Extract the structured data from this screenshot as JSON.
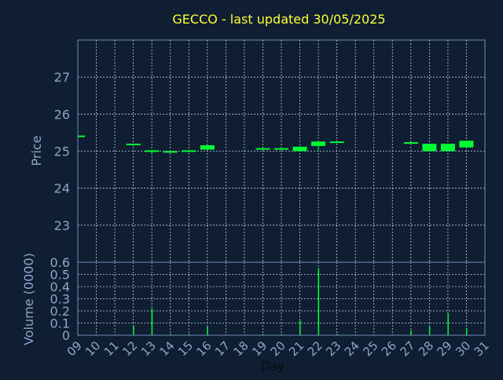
{
  "title": "GECCO - last updated 30/05/2025",
  "colors": {
    "background": "#0f1e33",
    "frame": "#6f8fb5",
    "grid": "#c4d1e2",
    "title": "#ffff33",
    "axis_label": "#8ba6c8",
    "candle": "#00ff33"
  },
  "chart_data": [
    {
      "type": "candlestick",
      "ylabel": "Price",
      "ylim": [
        22.0,
        28.0
      ],
      "yticks": [
        23,
        24,
        25,
        26,
        27
      ],
      "grid": true,
      "candles": [
        {
          "day": 9,
          "open": 25.4,
          "close": 25.4,
          "high": 25.42,
          "low": 25.38
        },
        {
          "day": 12,
          "open": 25.18,
          "close": 25.18,
          "high": 25.2,
          "low": 25.14
        },
        {
          "day": 13,
          "open": 25.0,
          "close": 25.0,
          "high": 25.02,
          "low": 24.92
        },
        {
          "day": 14,
          "open": 24.98,
          "close": 24.98,
          "high": 25.0,
          "low": 24.96
        },
        {
          "day": 15,
          "open": 25.0,
          "close": 25.0,
          "high": 25.02,
          "low": 24.98
        },
        {
          "day": 16,
          "open": 25.04,
          "close": 25.16,
          "high": 25.16,
          "low": 25.04
        },
        {
          "day": 19,
          "open": 25.06,
          "close": 25.06,
          "high": 25.08,
          "low": 25.04
        },
        {
          "day": 20,
          "open": 25.06,
          "close": 25.06,
          "high": 25.08,
          "low": 25.04
        },
        {
          "day": 21,
          "open": 25.0,
          "close": 25.12,
          "high": 25.12,
          "low": 25.0
        },
        {
          "day": 22,
          "open": 25.14,
          "close": 25.26,
          "high": 25.26,
          "low": 25.0
        },
        {
          "day": 23,
          "open": 25.24,
          "close": 25.24,
          "high": 25.26,
          "low": 25.22
        },
        {
          "day": 27,
          "open": 25.22,
          "close": 25.22,
          "high": 25.24,
          "low": 25.2
        },
        {
          "day": 28,
          "open": 25.0,
          "close": 25.2,
          "high": 25.2,
          "low": 25.0
        },
        {
          "day": 29,
          "open": 25.0,
          "close": 25.2,
          "high": 25.2,
          "low": 25.0
        },
        {
          "day": 30,
          "open": 25.1,
          "close": 25.28,
          "high": 25.28,
          "low": 25.1
        }
      ]
    },
    {
      "type": "bar",
      "ylabel": "Volume (0000)",
      "ylim": [
        0,
        0.6
      ],
      "yticks": [
        0,
        0.1,
        0.2,
        0.3,
        0.4,
        0.5,
        0.6
      ],
      "grid": true,
      "volumes": [
        {
          "day": 9,
          "value": 0.01
        },
        {
          "day": 12,
          "value": 0.08
        },
        {
          "day": 13,
          "value": 0.22
        },
        {
          "day": 14,
          "value": 0.01
        },
        {
          "day": 15,
          "value": 0.01
        },
        {
          "day": 16,
          "value": 0.07
        },
        {
          "day": 19,
          "value": 0.01
        },
        {
          "day": 20,
          "value": 0.01
        },
        {
          "day": 21,
          "value": 0.12
        },
        {
          "day": 22,
          "value": 0.55
        },
        {
          "day": 23,
          "value": 0.01
        },
        {
          "day": 27,
          "value": 0.04
        },
        {
          "day": 28,
          "value": 0.07
        },
        {
          "day": 29,
          "value": 0.18
        },
        {
          "day": 30,
          "value": 0.06
        }
      ],
      "xlabel": "Day",
      "xticks": [
        "09",
        "10",
        "11",
        "12",
        "13",
        "14",
        "15",
        "16",
        "17",
        "18",
        "19",
        "20",
        "21",
        "22",
        "23",
        "24",
        "25",
        "26",
        "27",
        "28",
        "29",
        "30",
        "31"
      ]
    }
  ]
}
